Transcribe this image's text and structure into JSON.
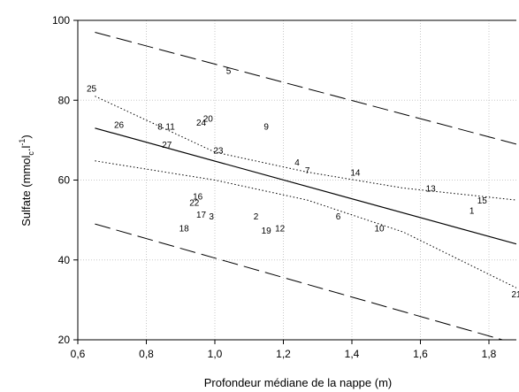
{
  "chart_data": {
    "type": "scatter",
    "xlabel": "Profondeur médiane de la nappe (m)",
    "ylabel": {
      "main": "Sulfate (mmol",
      "sub": "c",
      "mid": ".l",
      "sup": "-1",
      "close": ")"
    },
    "xlim": [
      0.6,
      1.88
    ],
    "ylim": [
      20,
      100
    ],
    "x_ticks": [
      {
        "value": 0.6,
        "label": "0,6"
      },
      {
        "value": 0.8,
        "label": "0,8"
      },
      {
        "value": 1.0,
        "label": "1,0"
      },
      {
        "value": 1.2,
        "label": "1,2"
      },
      {
        "value": 1.4,
        "label": "1,4"
      },
      {
        "value": 1.6,
        "label": "1,6"
      },
      {
        "value": 1.8,
        "label": "1,8"
      }
    ],
    "y_ticks": [
      {
        "value": 20,
        "label": "20"
      },
      {
        "value": 40,
        "label": "40"
      },
      {
        "value": 60,
        "label": "60"
      },
      {
        "value": 80,
        "label": "80"
      },
      {
        "value": 100,
        "label": "100"
      }
    ],
    "grid": true,
    "points": [
      {
        "label": "1",
        "x": 1.75,
        "y": 52.5
      },
      {
        "label": "2",
        "x": 1.12,
        "y": 51
      },
      {
        "label": "3",
        "x": 0.99,
        "y": 51
      },
      {
        "label": "4",
        "x": 1.24,
        "y": 64.5
      },
      {
        "label": "5",
        "x": 1.04,
        "y": 87.5
      },
      {
        "label": "6",
        "x": 1.36,
        "y": 51
      },
      {
        "label": "7",
        "x": 1.27,
        "y": 62.5
      },
      {
        "label": "8",
        "x": 0.84,
        "y": 73.5
      },
      {
        "label": "9",
        "x": 1.15,
        "y": 73.5
      },
      {
        "label": "10",
        "x": 1.48,
        "y": 48
      },
      {
        "label": "11",
        "x": 0.87,
        "y": 73.5
      },
      {
        "label": "12",
        "x": 1.19,
        "y": 48
      },
      {
        "label": "13",
        "x": 1.63,
        "y": 58
      },
      {
        "label": "14",
        "x": 1.41,
        "y": 62
      },
      {
        "label": "15",
        "x": 1.78,
        "y": 55
      },
      {
        "label": "16",
        "x": 0.95,
        "y": 56
      },
      {
        "label": "17",
        "x": 0.96,
        "y": 51.5
      },
      {
        "label": "18",
        "x": 0.91,
        "y": 48
      },
      {
        "label": "19",
        "x": 1.15,
        "y": 47.5
      },
      {
        "label": "20",
        "x": 0.98,
        "y": 75.5
      },
      {
        "label": "21",
        "x": 1.88,
        "y": 31.5
      },
      {
        "label": "22",
        "x": 0.94,
        "y": 54.5
      },
      {
        "label": "23",
        "x": 1.01,
        "y": 67.5
      },
      {
        "label": "24",
        "x": 0.96,
        "y": 74.5
      },
      {
        "label": "25",
        "x": 0.64,
        "y": 83
      },
      {
        "label": "26",
        "x": 0.72,
        "y": 74
      },
      {
        "label": "27",
        "x": 0.86,
        "y": 69
      }
    ],
    "lines": [
      {
        "role": "regression",
        "style": "solid",
        "x": [
          0.65,
          1.88
        ],
        "y": [
          73,
          44
        ]
      },
      {
        "role": "confidence-upper",
        "style": "dotted",
        "x": [
          0.65,
          1.0,
          1.27,
          1.55,
          1.88
        ],
        "y": [
          81,
          67,
          62,
          58,
          55
        ]
      },
      {
        "role": "confidence-lower",
        "style": "dotted",
        "x": [
          0.65,
          1.0,
          1.27,
          1.55,
          1.88
        ],
        "y": [
          64.8,
          60,
          55,
          47,
          33
        ]
      },
      {
        "role": "prediction-upper",
        "style": "dashed",
        "x": [
          0.65,
          1.88
        ],
        "y": [
          97,
          69
        ]
      },
      {
        "role": "prediction-lower",
        "style": "dashed",
        "x": [
          0.65,
          1.88
        ],
        "y": [
          49,
          19
        ]
      }
    ]
  }
}
